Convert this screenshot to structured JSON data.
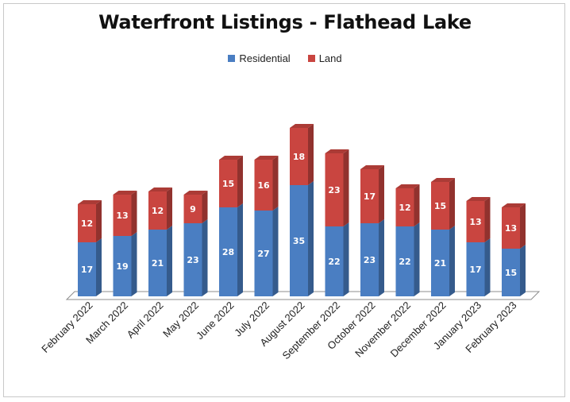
{
  "chart_data": {
    "type": "bar",
    "stacked": true,
    "title": "Waterfront Listings - Flathead Lake",
    "categories": [
      "February 2022",
      "March 2022",
      "April 2022",
      "May 2022",
      "June 2022",
      "July 2022",
      "August 2022",
      "September 2022",
      "October 2022",
      "November 2022",
      "December 2022",
      "January 2023",
      "February 2023"
    ],
    "series": [
      {
        "name": "Residential",
        "color": "#4a7ec2",
        "values": [
          17,
          19,
          21,
          23,
          28,
          27,
          35,
          22,
          23,
          22,
          21,
          17,
          15
        ]
      },
      {
        "name": "Land",
        "color": "#c94540",
        "values": [
          12,
          13,
          12,
          9,
          15,
          16,
          18,
          23,
          17,
          12,
          15,
          13,
          13
        ]
      }
    ],
    "ylim": [
      0,
      55
    ],
    "grid": false,
    "legend": "top-center",
    "data_labels": true,
    "style": "3d-column"
  }
}
